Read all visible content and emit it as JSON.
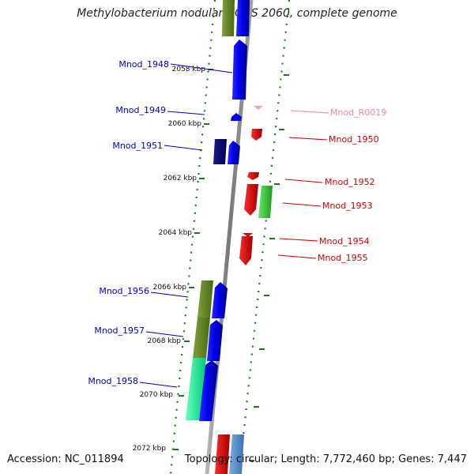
{
  "title": "Methylobacterium nodulans ORS 2060, complete genome",
  "accession": "Accession: NC_011894",
  "topology": "Topology: circular; Length: 7,772,460 bp; Genes: 7,447",
  "colors": {
    "strand_forward_label": "#0000cc",
    "strand_reverse_label": "#d10000",
    "rna_label": "#ef86b0",
    "backbone": "#8c8c8c",
    "tick": "#1a7a1a"
  },
  "scale_labels": [
    {
      "label": "2058 kbp",
      "kbp": 2058
    },
    {
      "label": "2060 kbp",
      "kbp": 2060
    },
    {
      "label": "2062 kbp",
      "kbp": 2062
    },
    {
      "label": "2064 kbp",
      "kbp": 2064
    },
    {
      "label": "2066 kbp",
      "kbp": 2066
    },
    {
      "label": "2068 kbp",
      "kbp": 2068
    },
    {
      "label": "2070 kbp",
      "kbp": 2070
    },
    {
      "label": "2072 kbp",
      "kbp": 2072
    }
  ],
  "gene_labels": [
    {
      "name": "Mnod_1948",
      "side": "left",
      "color": "#0000cc"
    },
    {
      "name": "Mnod_1949",
      "side": "left",
      "color": "#0000cc"
    },
    {
      "name": "Mnod_1951",
      "side": "left",
      "color": "#0000cc"
    },
    {
      "name": "Mnod_1956",
      "side": "left",
      "color": "#0000cc"
    },
    {
      "name": "Mnod_1957",
      "side": "left",
      "color": "#0000cc"
    },
    {
      "name": "Mnod_1958",
      "side": "left",
      "color": "#0000cc"
    },
    {
      "name": "Mnod_R0019",
      "side": "right",
      "color": "#ef86b0"
    },
    {
      "name": "Mnod_1950",
      "side": "right",
      "color": "#d10000"
    },
    {
      "name": "Mnod_1952",
      "side": "right",
      "color": "#d10000"
    },
    {
      "name": "Mnod_1953",
      "side": "right",
      "color": "#d10000"
    },
    {
      "name": "Mnod_1954",
      "side": "right",
      "color": "#d10000"
    },
    {
      "name": "Mnod_1955",
      "side": "right",
      "color": "#d10000"
    }
  ]
}
